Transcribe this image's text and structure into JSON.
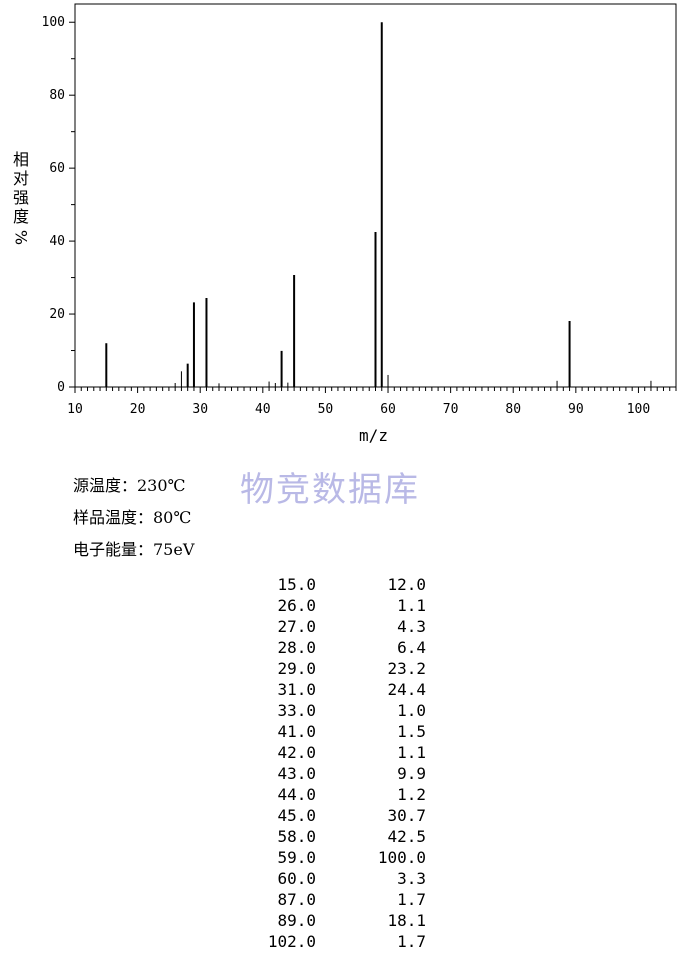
{
  "chart_data": {
    "type": "bar",
    "xlabel": "m/z",
    "ylabel": "相对强度%",
    "ylabel_chars": [
      "相",
      "对",
      "强",
      "度"
    ],
    "ylabel_unit": "%",
    "xlim": [
      10,
      106
    ],
    "ylim": [
      0,
      105
    ],
    "xticks": [
      10,
      20,
      30,
      40,
      50,
      60,
      70,
      80,
      90,
      100
    ],
    "yticks": [
      0,
      20,
      40,
      60,
      80,
      100
    ],
    "peaks": [
      {
        "x": 15.0,
        "y": 12.0
      },
      {
        "x": 26.0,
        "y": 1.1
      },
      {
        "x": 27.0,
        "y": 4.3
      },
      {
        "x": 28.0,
        "y": 6.4
      },
      {
        "x": 29.0,
        "y": 23.2
      },
      {
        "x": 31.0,
        "y": 24.4
      },
      {
        "x": 33.0,
        "y": 1.0
      },
      {
        "x": 41.0,
        "y": 1.5
      },
      {
        "x": 42.0,
        "y": 1.1
      },
      {
        "x": 43.0,
        "y": 9.9
      },
      {
        "x": 44.0,
        "y": 1.2
      },
      {
        "x": 45.0,
        "y": 30.7
      },
      {
        "x": 58.0,
        "y": 42.5
      },
      {
        "x": 59.0,
        "y": 100.0
      },
      {
        "x": 60.0,
        "y": 3.3
      },
      {
        "x": 87.0,
        "y": 1.7
      },
      {
        "x": 89.0,
        "y": 18.1
      },
      {
        "x": 102.0,
        "y": 1.7
      }
    ]
  },
  "watermark": "物竞数据库",
  "conditions": {
    "source_temp": "源温度：230℃",
    "sample_temp": "样品温度：80℃",
    "electron_energy": "电子能量：75eV"
  },
  "peak_table": [
    [
      "15.0",
      "12.0"
    ],
    [
      "26.0",
      "1.1"
    ],
    [
      "27.0",
      "4.3"
    ],
    [
      "28.0",
      "6.4"
    ],
    [
      "29.0",
      "23.2"
    ],
    [
      "31.0",
      "24.4"
    ],
    [
      "33.0",
      "1.0"
    ],
    [
      "41.0",
      "1.5"
    ],
    [
      "42.0",
      "1.1"
    ],
    [
      "43.0",
      "9.9"
    ],
    [
      "44.0",
      "1.2"
    ],
    [
      "45.0",
      "30.7"
    ],
    [
      "58.0",
      "42.5"
    ],
    [
      "59.0",
      "100.0"
    ],
    [
      "60.0",
      "3.3"
    ],
    [
      "87.0",
      "1.7"
    ],
    [
      "89.0",
      "18.1"
    ],
    [
      "102.0",
      "1.7"
    ]
  ]
}
